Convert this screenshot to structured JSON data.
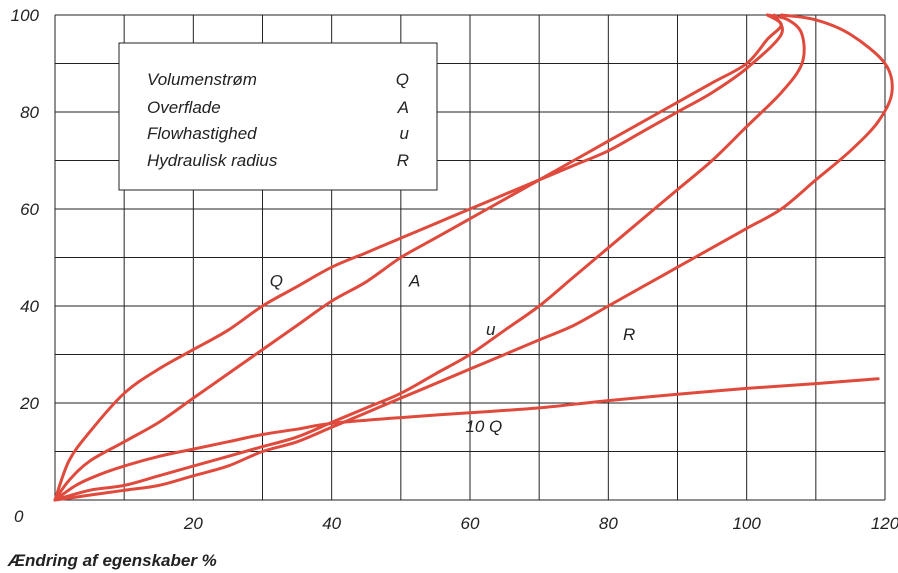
{
  "chart_data": {
    "type": "line",
    "xlabel": "Ændring af egenskaber %",
    "ylabel": "",
    "xlim": [
      0,
      120
    ],
    "ylim": [
      0,
      100
    ],
    "grid": true,
    "x_ticks": [
      "20",
      "40",
      "60",
      "80",
      "100",
      "120"
    ],
    "y_ticks": [
      "0",
      "20",
      "40",
      "60",
      "80",
      "100"
    ],
    "legend": {
      "placement": "top-left",
      "entries": [
        {
          "name": "Volumenstrøm",
          "symbol": "Q"
        },
        {
          "name": "Overflade",
          "symbol": "A"
        },
        {
          "name": "Flowhastighed",
          "symbol": "u"
        },
        {
          "name": "Hydraulisk radius",
          "symbol": "R"
        }
      ]
    },
    "series_color": "#e04a3c",
    "series": [
      {
        "name": "Q",
        "points": [
          [
            0,
            0
          ],
          [
            2,
            8
          ],
          [
            5,
            14
          ],
          [
            10,
            22
          ],
          [
            15,
            27
          ],
          [
            20,
            31
          ],
          [
            25,
            35
          ],
          [
            30,
            40
          ],
          [
            35,
            44
          ],
          [
            40,
            48
          ],
          [
            45,
            51
          ],
          [
            50,
            54
          ],
          [
            55,
            57
          ],
          [
            60,
            60
          ],
          [
            65,
            63
          ],
          [
            70,
            66
          ],
          [
            75,
            69
          ],
          [
            80,
            72
          ],
          [
            85,
            76
          ],
          [
            90,
            80
          ],
          [
            95,
            84
          ],
          [
            100,
            89
          ],
          [
            105,
            96
          ],
          [
            104,
            100
          ]
        ]
      },
      {
        "name": "A",
        "points": [
          [
            0,
            0
          ],
          [
            2,
            4
          ],
          [
            5,
            8
          ],
          [
            10,
            12
          ],
          [
            15,
            16
          ],
          [
            20,
            21
          ],
          [
            25,
            26
          ],
          [
            30,
            31
          ],
          [
            35,
            36
          ],
          [
            40,
            41
          ],
          [
            45,
            45
          ],
          [
            50,
            50
          ],
          [
            55,
            54
          ],
          [
            60,
            58
          ],
          [
            65,
            62
          ],
          [
            70,
            66
          ],
          [
            75,
            70
          ],
          [
            80,
            74
          ],
          [
            85,
            78
          ],
          [
            90,
            82
          ],
          [
            95,
            86
          ],
          [
            100,
            90
          ],
          [
            103,
            95
          ],
          [
            105,
            98
          ],
          [
            103,
            100
          ]
        ]
      },
      {
        "name": "u",
        "points": [
          [
            0,
            0
          ],
          [
            5,
            2
          ],
          [
            10,
            3
          ],
          [
            15,
            5
          ],
          [
            20,
            7
          ],
          [
            25,
            9
          ],
          [
            30,
            11
          ],
          [
            35,
            13
          ],
          [
            40,
            16
          ],
          [
            45,
            19
          ],
          [
            50,
            22
          ],
          [
            55,
            26
          ],
          [
            60,
            30
          ],
          [
            65,
            35
          ],
          [
            70,
            40
          ],
          [
            75,
            46
          ],
          [
            80,
            52
          ],
          [
            85,
            58
          ],
          [
            90,
            64
          ],
          [
            95,
            70
          ],
          [
            100,
            77
          ],
          [
            105,
            84
          ],
          [
            108,
            90
          ],
          [
            108,
            96
          ],
          [
            106,
            99
          ],
          [
            103,
            100
          ]
        ]
      },
      {
        "name": "R",
        "points": [
          [
            0,
            0
          ],
          [
            5,
            1
          ],
          [
            10,
            2
          ],
          [
            15,
            3
          ],
          [
            20,
            5
          ],
          [
            25,
            7
          ],
          [
            30,
            10
          ],
          [
            35,
            12
          ],
          [
            40,
            15
          ],
          [
            45,
            18
          ],
          [
            50,
            21
          ],
          [
            55,
            24
          ],
          [
            60,
            27
          ],
          [
            65,
            30
          ],
          [
            70,
            33
          ],
          [
            75,
            36
          ],
          [
            80,
            40
          ],
          [
            85,
            44
          ],
          [
            90,
            48
          ],
          [
            95,
            52
          ],
          [
            100,
            56
          ],
          [
            105,
            60
          ],
          [
            110,
            66
          ],
          [
            115,
            72
          ],
          [
            119,
            78
          ],
          [
            121,
            84
          ],
          [
            120,
            90
          ],
          [
            115,
            96
          ],
          [
            110,
            99
          ],
          [
            105,
            100
          ]
        ]
      },
      {
        "name": "10 Q",
        "points": [
          [
            0,
            0
          ],
          [
            3,
            3
          ],
          [
            6,
            5
          ],
          [
            10,
            7
          ],
          [
            15,
            9
          ],
          [
            20,
            10.5
          ],
          [
            25,
            12
          ],
          [
            30,
            13.5
          ],
          [
            35,
            14.6
          ],
          [
            40,
            15.8
          ],
          [
            50,
            17
          ],
          [
            60,
            18
          ],
          [
            70,
            19
          ],
          [
            80,
            20.5
          ],
          [
            90,
            21.8
          ],
          [
            100,
            23
          ],
          [
            110,
            24
          ],
          [
            119,
            25
          ]
        ]
      }
    ],
    "curve_labels": [
      {
        "text": "Q",
        "x": 32,
        "y": 44
      },
      {
        "text": "A",
        "x": 52,
        "y": 44
      },
      {
        "text": "u",
        "x": 63,
        "y": 34
      },
      {
        "text": "R",
        "x": 83,
        "y": 33
      },
      {
        "text": "10 Q",
        "x": 62,
        "y": 14
      }
    ]
  }
}
